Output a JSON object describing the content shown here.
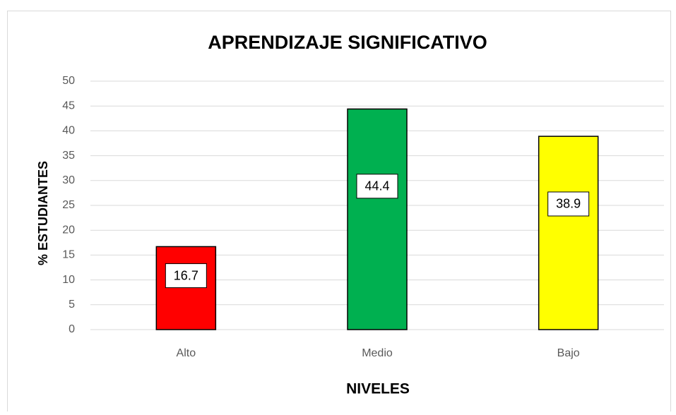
{
  "chart_data": {
    "type": "bar",
    "title": "APRENDIZAJE SIGNIFICATIVO",
    "x_label": "NIVELES",
    "y_label": "% ESTUDIANTES",
    "categories": [
      "Alto",
      "Medio",
      "Bajo"
    ],
    "values": [
      16.7,
      44.4,
      38.9
    ],
    "colors": [
      "#ff0000",
      "#00b050",
      "#ffff00"
    ],
    "ylim": [
      0,
      50
    ],
    "yticks": [
      0,
      5,
      10,
      15,
      20,
      25,
      30,
      35,
      40,
      45,
      50
    ],
    "grid": true
  }
}
